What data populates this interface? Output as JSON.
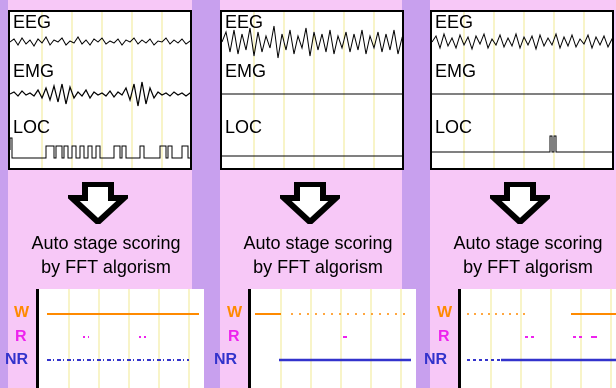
{
  "panels": [
    {
      "channels": [
        "EEG",
        "EMG",
        "LOC"
      ],
      "caption_line1": "Auto stage scoring",
      "caption_line2": "by FFT algorism",
      "stages": [
        "W",
        "R",
        "NR"
      ]
    },
    {
      "channels": [
        "EEG",
        "EMG",
        "LOC"
      ],
      "caption_line1": "Auto stage scoring",
      "caption_line2": "by FFT algorism",
      "stages": [
        "W",
        "R",
        "NR"
      ]
    },
    {
      "channels": [
        "EEG",
        "EMG",
        "LOC"
      ],
      "caption_line1": "Auto stage scoring",
      "caption_line2": "by FFT algorism",
      "stages": [
        "W",
        "R",
        "NR"
      ]
    }
  ],
  "colors": {
    "background": "#f7c8f7",
    "stripe": "#c8a0ee",
    "wake": "#ff8a00",
    "rem": "#ee22ee",
    "nrem": "#3333cc",
    "trace": "#000000",
    "grid": "#f0e890"
  },
  "icons": [
    "down-arrow-icon"
  ]
}
